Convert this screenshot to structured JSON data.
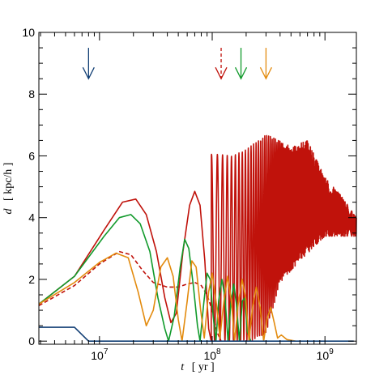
{
  "chart_data": {
    "type": "line",
    "xlabel": {
      "var": "t",
      "unit": "[ yr ]"
    },
    "ylabel": {
      "var": "d",
      "unit": "[ kpc/h ]"
    },
    "xscale": "log",
    "xlim": [
      2900000.0,
      1900000000.0
    ],
    "ylim": [
      -0.1,
      10
    ],
    "yticks": [
      0,
      2,
      4,
      6,
      8,
      10
    ],
    "xticks": [
      {
        "value": 10000000.0,
        "base": "10",
        "exp": "7"
      },
      {
        "value": 100000000.0,
        "base": "10",
        "exp": "8"
      },
      {
        "value": 1000000000.0,
        "base": "10",
        "exp": "9"
      }
    ],
    "grid": false,
    "legend": "none",
    "series": [
      {
        "key": "red-solid",
        "color": "#c0120b",
        "dash": "solid",
        "points": [
          [
            2900000.0,
            1.2
          ],
          [
            6000000.0,
            2.1
          ],
          [
            11000000.0,
            3.6
          ],
          [
            16000000.0,
            4.5
          ],
          [
            21000000.0,
            4.6
          ],
          [
            26000000.0,
            4.1
          ],
          [
            32000000.0,
            2.9
          ],
          [
            38000000.0,
            1.4
          ],
          [
            43000000.0,
            0.6
          ],
          [
            48000000.0,
            0.9
          ],
          [
            55000000.0,
            2.9
          ],
          [
            63000000.0,
            4.4
          ],
          [
            70000000.0,
            4.85
          ],
          [
            78000000.0,
            4.4
          ],
          [
            86000000.0,
            2.6
          ],
          [
            93000000.0,
            0.4
          ],
          [
            98000000.0,
            0.0
          ]
        ],
        "oscillation": {
          "from": 98000000.0,
          "to": 1900000000.0,
          "startPeriod": 25000000.0,
          "endPeriod": 26000000.0,
          "growth": 1.6,
          "floor": 3.4,
          "peaks": [
            [
              120000000.0,
              6.05
            ],
            [
              150000000.0,
              6.0
            ],
            [
              200000000.0,
              6.2
            ],
            [
              300000000.0,
              6.7
            ],
            [
              500000000.0,
              6.3
            ],
            [
              700000000.0,
              6.5
            ],
            [
              1000000000.0,
              5.3
            ],
            [
              1400000000.0,
              4.7
            ],
            [
              1900000000.0,
              4.0
            ]
          ],
          "troughs": [
            [
              98000000.0,
              0.0
            ],
            [
              220000000.0,
              0.0
            ],
            [
              300000000.0,
              0.25
            ],
            [
              400000000.0,
              1.9
            ],
            [
              600000000.0,
              2.6
            ],
            [
              1000000000.0,
              3.4
            ],
            [
              1900000000.0,
              3.4
            ]
          ]
        }
      },
      {
        "key": "red-dashed",
        "color": "#c0120b",
        "dash": "dashed",
        "points": [
          [
            2900000.0,
            1.15
          ],
          [
            6000000.0,
            1.8
          ],
          [
            10000000.0,
            2.5
          ],
          [
            15000000.0,
            2.9
          ],
          [
            19000000.0,
            2.8
          ],
          [
            24000000.0,
            2.3
          ],
          [
            30000000.0,
            1.9
          ],
          [
            40000000.0,
            1.75
          ],
          [
            50000000.0,
            1.75
          ],
          [
            60000000.0,
            1.85
          ],
          [
            70000000.0,
            1.9
          ],
          [
            80000000.0,
            1.8
          ],
          [
            90000000.0,
            1.5
          ],
          [
            100000000.0,
            1.0
          ],
          [
            110000000.0,
            0.3
          ],
          [
            120000000.0,
            0.0
          ]
        ]
      },
      {
        "key": "green",
        "color": "#119a2b",
        "dash": "solid",
        "points": [
          [
            2900000.0,
            1.2
          ],
          [
            6000000.0,
            2.1
          ],
          [
            11000000.0,
            3.4
          ],
          [
            15000000.0,
            4.0
          ],
          [
            19000000.0,
            4.1
          ],
          [
            23000000.0,
            3.8
          ],
          [
            28000000.0,
            2.9
          ],
          [
            33000000.0,
            1.4
          ],
          [
            38000000.0,
            0.4
          ],
          [
            41000000.0,
            0.0
          ],
          [
            46000000.0,
            0.8
          ],
          [
            52000000.0,
            2.4
          ],
          [
            57000000.0,
            3.3
          ],
          [
            62000000.0,
            3.0
          ],
          [
            68000000.0,
            1.8
          ],
          [
            74000000.0,
            0.5
          ],
          [
            78000000.0,
            0.0
          ],
          [
            84000000.0,
            1.2
          ],
          [
            90000000.0,
            2.2
          ],
          [
            96000000.0,
            2.0
          ],
          [
            102000000.0,
            0.8
          ],
          [
            108000000.0,
            0.0
          ],
          [
            114000000.0,
            1.3
          ],
          [
            122000000.0,
            2.0
          ],
          [
            130000000.0,
            1.4
          ],
          [
            138000000.0,
            0.0
          ],
          [
            146000000.0,
            1.2
          ],
          [
            155000000.0,
            1.85
          ],
          [
            164000000.0,
            1.2
          ],
          [
            174000000.0,
            0.0
          ],
          [
            185000000.0,
            1.3
          ],
          [
            195000000.0,
            1.4
          ],
          [
            205000000.0,
            0.3
          ],
          [
            220000000.0,
            0.0
          ]
        ]
      },
      {
        "key": "orange",
        "color": "#e38b0e",
        "dash": "solid",
        "points": [
          [
            2900000.0,
            1.2
          ],
          [
            6000000.0,
            1.9
          ],
          [
            10000000.0,
            2.55
          ],
          [
            14000000.0,
            2.85
          ],
          [
            18000000.0,
            2.7
          ],
          [
            22000000.0,
            1.6
          ],
          [
            26000000.0,
            0.5
          ],
          [
            30000000.0,
            1.0
          ],
          [
            35000000.0,
            2.4
          ],
          [
            40000000.0,
            2.7
          ],
          [
            45000000.0,
            2.1
          ],
          [
            50000000.0,
            0.7
          ],
          [
            54000000.0,
            0.0
          ],
          [
            60000000.0,
            1.3
          ],
          [
            66000000.0,
            2.6
          ],
          [
            72000000.0,
            2.4
          ],
          [
            79000000.0,
            1.0
          ],
          [
            85000000.0,
            0.1
          ],
          [
            93000000.0,
            1.6
          ],
          [
            100000000.0,
            2.2
          ],
          [
            109000000.0,
            1.2
          ],
          [
            117000000.0,
            0.1
          ],
          [
            127000000.0,
            1.3
          ],
          [
            137000000.0,
            2.1
          ],
          [
            148000000.0,
            1.3
          ],
          [
            158000000.0,
            0.0
          ],
          [
            170000000.0,
            1.2
          ],
          [
            184000000.0,
            2.0
          ],
          [
            198000000.0,
            1.4
          ],
          [
            212000000.0,
            0.0
          ],
          [
            228000000.0,
            1.1
          ],
          [
            246000000.0,
            1.75
          ],
          [
            266000000.0,
            1.1
          ],
          [
            286000000.0,
            0.0
          ],
          [
            306000000.0,
            0.7
          ],
          [
            330000000.0,
            1.1
          ],
          [
            355000000.0,
            0.6
          ],
          [
            380000000.0,
            0.1
          ],
          [
            410000000.0,
            0.2
          ],
          [
            460000000.0,
            0.05
          ],
          [
            550000000.0,
            0.0
          ]
        ]
      },
      {
        "key": "blue",
        "color": "#123f75",
        "dash": "solid",
        "points": [
          [
            2900000.0,
            0.45
          ],
          [
            6000000.0,
            0.45
          ],
          [
            8000000.0,
            0.0
          ],
          [
            1800000000.0,
            0.0
          ]
        ]
      }
    ],
    "markers": [
      {
        "x": 8000000.0,
        "y_top": 9.5,
        "y_bottom": 8.5,
        "color": "#123f75",
        "dash": "solid"
      },
      {
        "x": 120000000.0,
        "y_top": 9.5,
        "y_bottom": 8.5,
        "color": "#c0120b",
        "dash": "dashed"
      },
      {
        "x": 180000000.0,
        "y_top": 9.5,
        "y_bottom": 8.5,
        "color": "#119a2b",
        "dash": "solid"
      },
      {
        "x": 300000000.0,
        "y_top": 9.5,
        "y_bottom": 8.5,
        "color": "#e38b0e",
        "dash": "solid"
      }
    ]
  }
}
